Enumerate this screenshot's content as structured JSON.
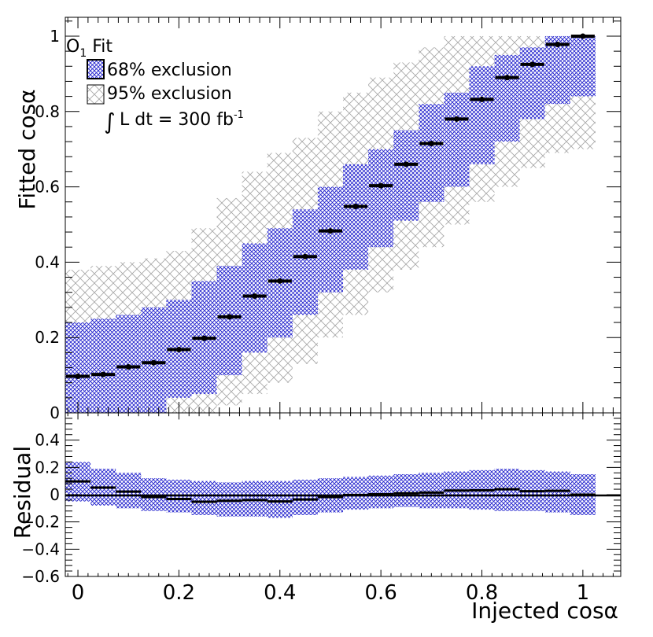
{
  "chart_data": {
    "type": "scatter",
    "title": "",
    "xlabel": "Injected cosα",
    "ylabel_top": "Fitted cosα",
    "ylabel_bottom": "Residual",
    "xlim": [
      -0.025,
      1.075
    ],
    "ylim_top": [
      0,
      1.05
    ],
    "ylim_bottom": [
      -0.6,
      0.6
    ],
    "x_ticks": [
      "0",
      "0.2",
      "0.4",
      "0.6",
      "0.8",
      "1"
    ],
    "y_ticks_top": [
      "0",
      "0.2",
      "0.4",
      "0.6",
      "0.8",
      "1"
    ],
    "y_ticks_bottom": [
      "−0.6",
      "−0.4",
      "−0.2",
      "0",
      "0.2",
      "0.4"
    ],
    "legend": {
      "fit_label": "O",
      "fit_subscript": "1",
      "fit_suffix": " Fit",
      "band68": "68% exclusion",
      "band95": "95% exclusion",
      "lumi_integral": "∫",
      "lumi_text": "L dt = 300 fb",
      "lumi_sup": "-1",
      "placement": "top-left"
    },
    "bin_width": 0.05,
    "x": [
      0.0,
      0.05,
      0.1,
      0.15,
      0.2,
      0.25,
      0.3,
      0.35,
      0.4,
      0.45,
      0.5,
      0.55,
      0.6,
      0.65,
      0.7,
      0.75,
      0.8,
      0.85,
      0.9,
      0.95,
      1.0
    ],
    "fitted": [
      0.097,
      0.102,
      0.122,
      0.133,
      0.168,
      0.198,
      0.255,
      0.31,
      0.35,
      0.415,
      0.483,
      0.548,
      0.603,
      0.66,
      0.715,
      0.78,
      0.832,
      0.89,
      0.925,
      0.978,
      1.0
    ],
    "band68_low": [
      0.0,
      0.0,
      0.0,
      0.0,
      0.04,
      0.05,
      0.1,
      0.16,
      0.2,
      0.26,
      0.32,
      0.38,
      0.44,
      0.51,
      0.56,
      0.6,
      0.66,
      0.72,
      0.78,
      0.82,
      0.84
    ],
    "band68_high": [
      0.24,
      0.25,
      0.26,
      0.28,
      0.3,
      0.35,
      0.39,
      0.45,
      0.49,
      0.54,
      0.6,
      0.66,
      0.7,
      0.75,
      0.82,
      0.85,
      0.92,
      0.95,
      0.97,
      1.0,
      1.0
    ],
    "band95_low": [
      0.0,
      0.0,
      0.0,
      0.0,
      0.0,
      0.0,
      0.02,
      0.05,
      0.08,
      0.13,
      0.2,
      0.26,
      0.32,
      0.38,
      0.44,
      0.5,
      0.56,
      0.6,
      0.65,
      0.69,
      0.7
    ],
    "band95_high": [
      0.38,
      0.39,
      0.4,
      0.41,
      0.43,
      0.49,
      0.57,
      0.64,
      0.69,
      0.73,
      0.8,
      0.85,
      0.89,
      0.93,
      0.97,
      1.0,
      1.0,
      1.0,
      1.0,
      1.0,
      1.0
    ],
    "residual": [
      0.097,
      0.052,
      0.022,
      -0.017,
      -0.032,
      -0.052,
      -0.045,
      -0.04,
      -0.05,
      -0.035,
      -0.017,
      -0.002,
      0.003,
      0.01,
      0.015,
      0.03,
      0.032,
      0.04,
      0.025,
      0.028,
      0.0
    ],
    "residual68_low": [
      -0.05,
      -0.08,
      -0.1,
      -0.12,
      -0.13,
      -0.15,
      -0.16,
      -0.16,
      -0.17,
      -0.15,
      -0.13,
      -0.11,
      -0.1,
      -0.09,
      -0.1,
      -0.1,
      -0.11,
      -0.12,
      -0.12,
      -0.13,
      -0.15
    ],
    "residual68_high": [
      0.24,
      0.19,
      0.16,
      0.12,
      0.11,
      0.1,
      0.09,
      0.1,
      0.1,
      0.11,
      0.12,
      0.13,
      0.14,
      0.15,
      0.16,
      0.17,
      0.18,
      0.19,
      0.18,
      0.17,
      0.15
    ]
  },
  "colors": {
    "band68": "#1f1fcc",
    "band95": "#a8a8a8",
    "marker": "#000000"
  }
}
